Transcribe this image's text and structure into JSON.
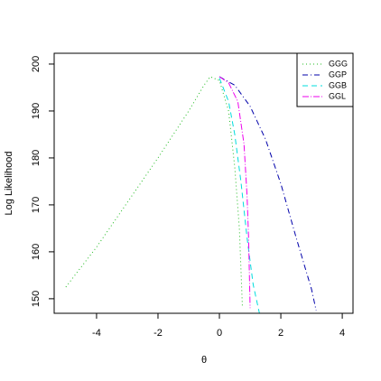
{
  "chart_data": {
    "type": "line",
    "x_label": "θ",
    "y_label": "Log Likelihood",
    "xlim": [
      -5.38,
      4.35
    ],
    "ylim": [
      146.9,
      202.3
    ],
    "xticks": [
      -4,
      -2,
      0,
      2,
      4
    ],
    "yticks": [
      150,
      160,
      170,
      180,
      190,
      200
    ],
    "legend": "top-right",
    "series": [
      {
        "name": "GGG",
        "color": "#22bb22",
        "dash": "1,3",
        "x": [
          -5,
          -4,
          -3,
          -2,
          -1,
          -0.5,
          -0.3,
          0,
          0.3,
          0.5,
          0.65,
          0.75
        ],
        "values": [
          152.5,
          161,
          170.5,
          180,
          190,
          195.5,
          197.3,
          196.5,
          190,
          178,
          165,
          148
        ]
      },
      {
        "name": "GGP",
        "color": "#0000aa",
        "dash": "6,3,1,3",
        "x": [
          0,
          0.5,
          1,
          1.5,
          2,
          2.5,
          3,
          3.15
        ],
        "values": [
          197.3,
          195.5,
          191,
          184,
          174.5,
          163,
          152,
          147.5
        ]
      },
      {
        "name": "GGB",
        "color": "#00dddd",
        "dash": "6,4",
        "x": [
          0,
          0.3,
          0.5,
          0.7,
          0.9,
          1.1,
          1.3
        ],
        "values": [
          197,
          192,
          185,
          175,
          163,
          153,
          147
        ]
      },
      {
        "name": "GGL",
        "color": "#ee00ee",
        "dash": "7,2,1,2",
        "x": [
          0,
          0.3,
          0.6,
          0.8,
          0.9,
          0.95,
          1.0
        ],
        "values": [
          197.3,
          196,
          192,
          183,
          172,
          163,
          148
        ]
      }
    ]
  }
}
